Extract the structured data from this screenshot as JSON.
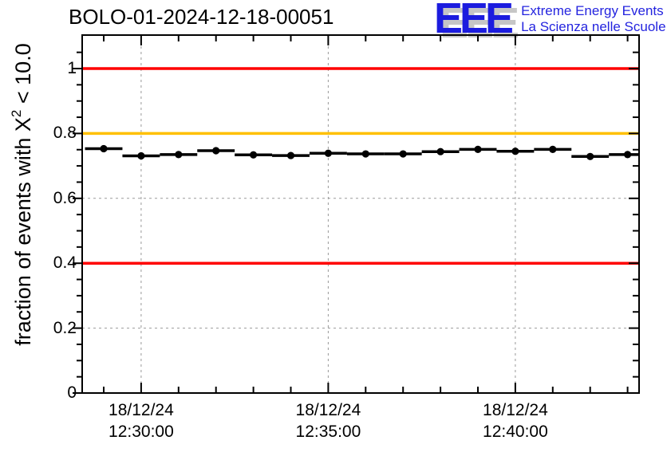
{
  "header": {
    "title": "BOLO-01-2024-12-18-00051",
    "logo": {
      "acronym": "EEE",
      "line1": "Extreme Energy Events",
      "line2": "La Scienza nelle Scuole"
    }
  },
  "colors": {
    "frame": "#000000",
    "grid": "#999999",
    "marker": "#000000",
    "ref_red": "#ff0000",
    "ref_orange": "#ffc000",
    "logo_blue": "#2424df",
    "logo_shadow": "#c6c6c6"
  },
  "chart_data": {
    "type": "line",
    "title": "BOLO-01-2024-12-18-00051",
    "ylabel": "fraction of events with X^2 < 10.0",
    "ylabel_parts": {
      "prefix": "fraction of events with X",
      "sup": "2",
      "suffix": " < 10.0"
    },
    "date": "18/12/24",
    "x_times": [
      "12:29",
      "12:30",
      "12:31",
      "12:32",
      "12:33",
      "12:34",
      "12:35",
      "12:36",
      "12:37",
      "12:38",
      "12:39",
      "12:40",
      "12:41",
      "12:42",
      "12:43"
    ],
    "values": [
      0.753,
      0.731,
      0.735,
      0.747,
      0.734,
      0.732,
      0.739,
      0.737,
      0.737,
      0.744,
      0.751,
      0.745,
      0.751,
      0.729,
      0.735
    ],
    "bin_width_minutes": 1,
    "marker": "filled-circle",
    "y_range": [
      0,
      1.105
    ],
    "y_major_ticks": [
      0,
      0.2,
      0.4,
      0.6,
      0.8,
      1
    ],
    "y_minor_step": 0.05,
    "x_minor_step_minutes": 1,
    "x_major_labels": [
      {
        "minute_index": 1,
        "date": "18/12/24",
        "time": "12:30:00"
      },
      {
        "minute_index": 6,
        "date": "18/12/24",
        "time": "12:35:00"
      },
      {
        "minute_index": 11,
        "date": "18/12/24",
        "time": "12:40:00"
      }
    ],
    "ref_lines": [
      {
        "value": 1.0,
        "color": "#ff0000"
      },
      {
        "value": 0.8,
        "color": "#ffc000"
      },
      {
        "value": 0.4,
        "color": "#ff0000"
      }
    ],
    "h_gridlines": [
      0.2,
      0.4,
      0.6,
      0.8,
      1.0
    ],
    "grid_style": "dashed",
    "legend": "none"
  }
}
